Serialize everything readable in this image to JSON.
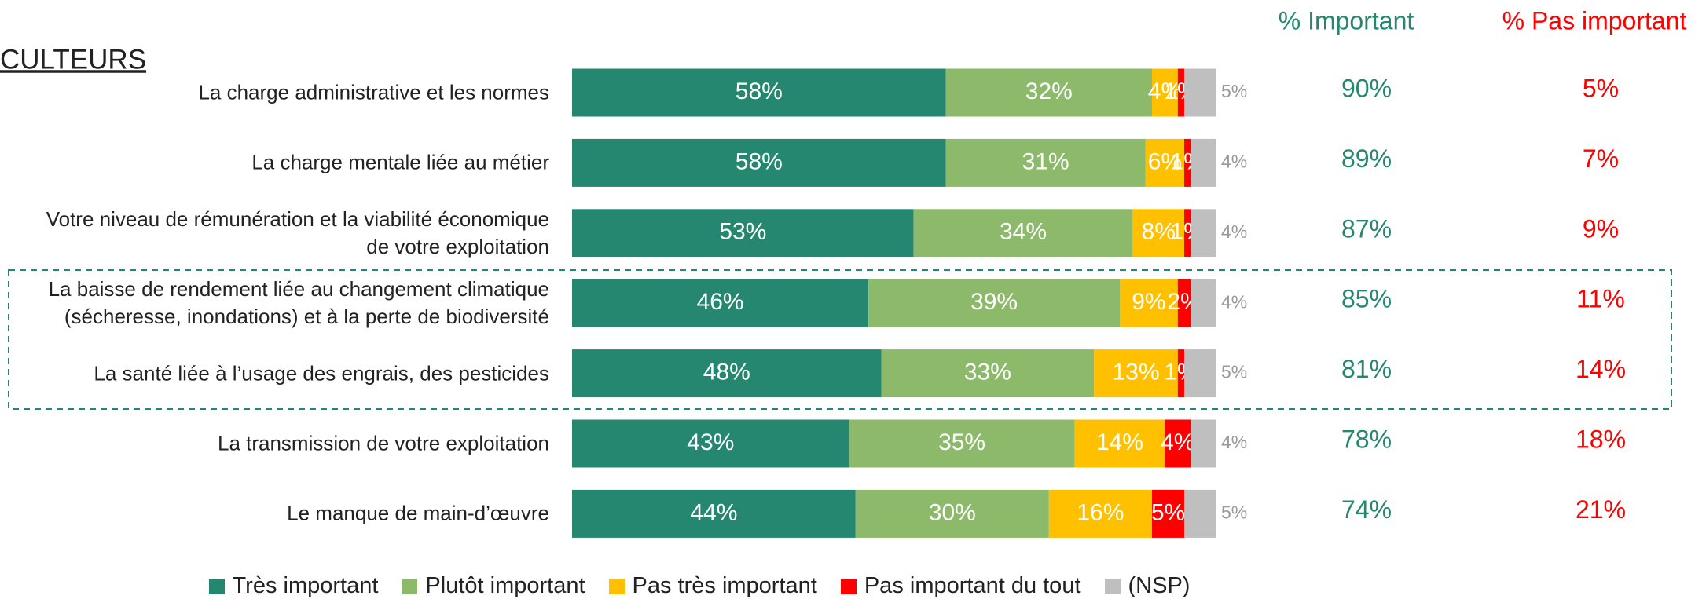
{
  "title": "CULTEURS",
  "chart_data": {
    "type": "stacked-bar-horizontal",
    "categories": [
      "La charge administrative et les normes",
      "La charge mentale liée au métier",
      "Votre niveau de rémunération et la viabilité économique\nde votre exploitation",
      "La baisse de rendement liée au changement climatique\n(sécheresse, inondations) et à la perte de biodiversité",
      "La santé liée à l’usage des engrais, des pesticides",
      "La transmission de votre exploitation",
      "Le manque de main-d’œuvre"
    ],
    "xlim": [
      0,
      100
    ],
    "series": [
      {
        "name": "Très important",
        "color": "#25876f",
        "values": [
          58,
          58,
          53,
          46,
          48,
          43,
          44
        ],
        "value_labels": [
          "58%",
          "58%",
          "53%",
          "46%",
          "48%",
          "43%",
          "44%"
        ]
      },
      {
        "name": "Plutôt important",
        "color": "#8db96b",
        "values": [
          32,
          31,
          34,
          39,
          33,
          35,
          30
        ],
        "value_labels": [
          "32%",
          "31%",
          "34%",
          "39%",
          "33%",
          "35%",
          "30%"
        ]
      },
      {
        "name": "Pas très important",
        "color": "#ffc000",
        "values": [
          4,
          6,
          8,
          9,
          13,
          14,
          16
        ],
        "value_labels": [
          "4%",
          "6%",
          "8%",
          "9%",
          "13%",
          "14%",
          "16%"
        ]
      },
      {
        "name": "Pas important du tout",
        "color": "#ff0000",
        "values": [
          1,
          1,
          1,
          2,
          1,
          4,
          5
        ],
        "value_labels": [
          "1%",
          "1%",
          "1%",
          "2%",
          "1%",
          "4%",
          "5%"
        ]
      },
      {
        "name": "(NSP)",
        "color": "#bfbfbf",
        "values": [
          5,
          4,
          4,
          4,
          5,
          4,
          5
        ],
        "value_labels": [
          "5%",
          "4%",
          "4%",
          "4%",
          "5%",
          "4%",
          "5%"
        ]
      }
    ],
    "summary": [
      {
        "name": "% Important",
        "color": "#25876f",
        "values": [
          90,
          89,
          87,
          85,
          81,
          78,
          74
        ],
        "value_labels": [
          "90%",
          "89%",
          "87%",
          "85%",
          "81%",
          "78%",
          "74%"
        ]
      },
      {
        "name": "% Pas important",
        "color": "#ff0000",
        "values": [
          5,
          7,
          9,
          11,
          14,
          18,
          21
        ],
        "value_labels": [
          "5%",
          "7%",
          "9%",
          "11%",
          "14%",
          "18%",
          "21%"
        ]
      }
    ]
  }
}
